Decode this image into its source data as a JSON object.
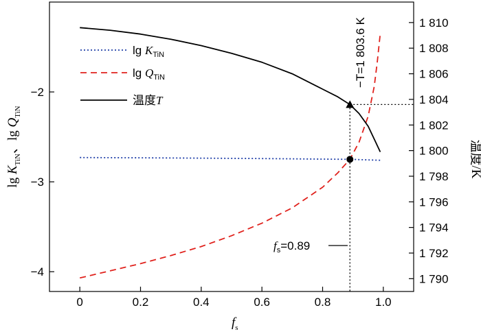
{
  "chart_data": {
    "type": "line",
    "x_axis": {
      "label_main": "f",
      "label_sub": "s",
      "range": [
        -0.1,
        1.1
      ],
      "ticks": [
        0,
        0.2,
        0.4,
        0.6,
        0.8,
        1.0
      ],
      "tick_labels": [
        "0",
        "0.2",
        "0.4",
        "0.6",
        "0.8",
        "1.0"
      ]
    },
    "y_left": {
      "label_parts": [
        "lg ",
        "K",
        "TiN",
        "、lg ",
        "Q",
        "TiN"
      ],
      "range": [
        -4.22,
        -1.0
      ],
      "ticks": [
        -4,
        -3,
        -2
      ],
      "tick_labels": [
        "−4",
        "−3",
        "−2"
      ]
    },
    "y_right": {
      "label": "温度/K",
      "range": [
        1789.0,
        1811.6
      ],
      "ticks": [
        1790,
        1792,
        1794,
        1796,
        1798,
        1800,
        1802,
        1804,
        1806,
        1808,
        1810
      ],
      "tick_labels": [
        "1 790",
        "1 792",
        "1 794",
        "1 796",
        "1 798",
        "1 800",
        "1 802",
        "1 804",
        "1 806",
        "1 808",
        "1 810"
      ]
    },
    "series": [
      {
        "name_parts": [
          "lg ",
          "K",
          "TiN"
        ],
        "axis": "left",
        "style": "dotted",
        "color": "#1f3fa8",
        "x": [
          0,
          0.2,
          0.4,
          0.6,
          0.8,
          0.89,
          0.99
        ],
        "y": [
          -2.73,
          -2.733,
          -2.737,
          -2.741,
          -2.747,
          -2.75,
          -2.76
        ]
      },
      {
        "name_parts": [
          "lg ",
          "Q",
          "TiN"
        ],
        "axis": "left",
        "style": "dashed",
        "color": "#e0211c",
        "x": [
          0,
          0.1,
          0.2,
          0.3,
          0.4,
          0.5,
          0.6,
          0.7,
          0.8,
          0.85,
          0.89,
          0.92,
          0.95,
          0.97,
          0.98,
          0.99
        ],
        "y": [
          -4.07,
          -3.99,
          -3.91,
          -3.82,
          -3.72,
          -3.6,
          -3.46,
          -3.29,
          -3.06,
          -2.9,
          -2.75,
          -2.56,
          -2.27,
          -1.94,
          -1.67,
          -1.35
        ]
      },
      {
        "name_parts": [
          "温度",
          "T"
        ],
        "axis": "right",
        "style": "solid",
        "color": "#000000",
        "x": [
          0,
          0.1,
          0.2,
          0.3,
          0.4,
          0.5,
          0.6,
          0.7,
          0.8,
          0.85,
          0.89,
          0.92,
          0.95,
          0.97,
          0.99
        ],
        "y": [
          1809.6,
          1809.4,
          1809.1,
          1808.7,
          1808.2,
          1807.6,
          1806.9,
          1806.0,
          1804.8,
          1804.2,
          1803.6,
          1802.9,
          1801.9,
          1800.9,
          1799.9
        ]
      }
    ],
    "markers": [
      {
        "shape": "triangle",
        "x": 0.89,
        "y": 1803.6,
        "axis": "right"
      },
      {
        "shape": "circle",
        "x": 0.89,
        "y": -2.75,
        "axis": "left"
      }
    ],
    "guide_x": 0.89,
    "guide_y_right": 1803.6,
    "annotations": {
      "temperature": "−T=1 803.6 K",
      "fs_main": "f",
      "fs_sub": "s",
      "fs_value": "=0.89"
    },
    "legend_position": "top-left",
    "grid": false
  }
}
